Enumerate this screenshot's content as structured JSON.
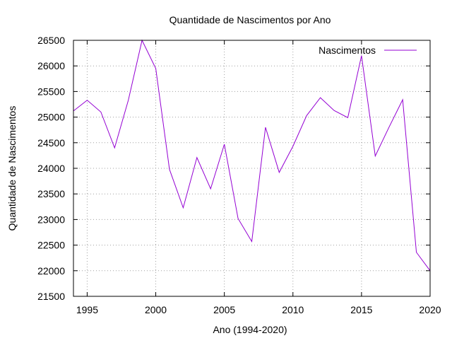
{
  "chart_data": {
    "type": "line",
    "title": "Quantidade de Nascimentos por Ano",
    "xlabel": "Ano (1994-2020)",
    "ylabel": "Quantidade de Nascimentos",
    "xlim": [
      1994,
      2020
    ],
    "ylim": [
      21500,
      26500
    ],
    "x_ticks": [
      1995,
      2000,
      2005,
      2010,
      2015,
      2020
    ],
    "y_ticks": [
      21500,
      22000,
      22500,
      23000,
      23500,
      24000,
      24500,
      25000,
      25500,
      26000,
      26500
    ],
    "grid": true,
    "legend_position": "top-right",
    "series": [
      {
        "name": "Nascimentos",
        "color": "#9400d3",
        "x": [
          1994,
          1995,
          1996,
          1997,
          1998,
          1999,
          2000,
          2001,
          2002,
          2003,
          2004,
          2005,
          2006,
          2007,
          2008,
          2009,
          2010,
          2011,
          2012,
          2013,
          2014,
          2015,
          2016,
          2017,
          2018,
          2019,
          2020
        ],
        "y": [
          25120,
          25330,
          25100,
          24400,
          25330,
          26500,
          25950,
          23980,
          23230,
          24210,
          23600,
          24470,
          23020,
          22570,
          24800,
          23920,
          24430,
          25030,
          25380,
          25130,
          24990,
          26200,
          24240,
          24800,
          25340,
          22360,
          22000
        ]
      }
    ]
  }
}
